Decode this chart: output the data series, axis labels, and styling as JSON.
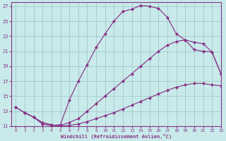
{
  "xlabel": "Windchill (Refroidissement éolien,°C)",
  "bg_color": "#c8eaea",
  "grid_color": "#a8cccc",
  "line_color": "#883388",
  "xlim": [
    -0.5,
    23
  ],
  "ylim": [
    11,
    27.5
  ],
  "xticks": [
    0,
    1,
    2,
    3,
    4,
    5,
    6,
    7,
    8,
    9,
    10,
    11,
    12,
    13,
    14,
    15,
    16,
    17,
    18,
    19,
    20,
    21,
    22,
    23
  ],
  "yticks": [
    11,
    13,
    15,
    17,
    19,
    21,
    23,
    25,
    27
  ],
  "line1_x": [
    0,
    1,
    2,
    3,
    4,
    5,
    6,
    7,
    8,
    9,
    10,
    11,
    12,
    13,
    14,
    15,
    16,
    17,
    18,
    19,
    20,
    21,
    22,
    23
  ],
  "line1_y": [
    13.5,
    12.8,
    12.2,
    11.3,
    11.1,
    11.2,
    14.5,
    17.0,
    19.2,
    21.5,
    23.3,
    25.0,
    26.3,
    26.6,
    27.1,
    27.0,
    26.7,
    25.5,
    23.3,
    22.5,
    21.2,
    21.0,
    20.9,
    18.0
  ],
  "line2_x": [
    0,
    1,
    2,
    3,
    4,
    5,
    6,
    7,
    8,
    9,
    10,
    11,
    12,
    13,
    14,
    15,
    16,
    17,
    18,
    19,
    20,
    21,
    22,
    23
  ],
  "line2_y": [
    13.5,
    12.8,
    12.2,
    11.3,
    11.1,
    11.1,
    11.5,
    12.0,
    13.0,
    14.0,
    15.0,
    16.0,
    17.0,
    18.0,
    19.0,
    20.0,
    21.0,
    21.8,
    22.3,
    22.5,
    22.2,
    22.0,
    20.9,
    18.0
  ],
  "line3_x": [
    1,
    2,
    3,
    4,
    5,
    6,
    7,
    8,
    9,
    10,
    11,
    12,
    13,
    14,
    15,
    16,
    17,
    18,
    19,
    20,
    21,
    22,
    23
  ],
  "line3_y": [
    12.8,
    12.2,
    11.5,
    11.2,
    11.0,
    11.1,
    11.3,
    11.6,
    12.0,
    12.4,
    12.8,
    13.3,
    13.8,
    14.3,
    14.8,
    15.3,
    15.8,
    16.2,
    16.5,
    16.7,
    16.7,
    16.5,
    16.4
  ]
}
